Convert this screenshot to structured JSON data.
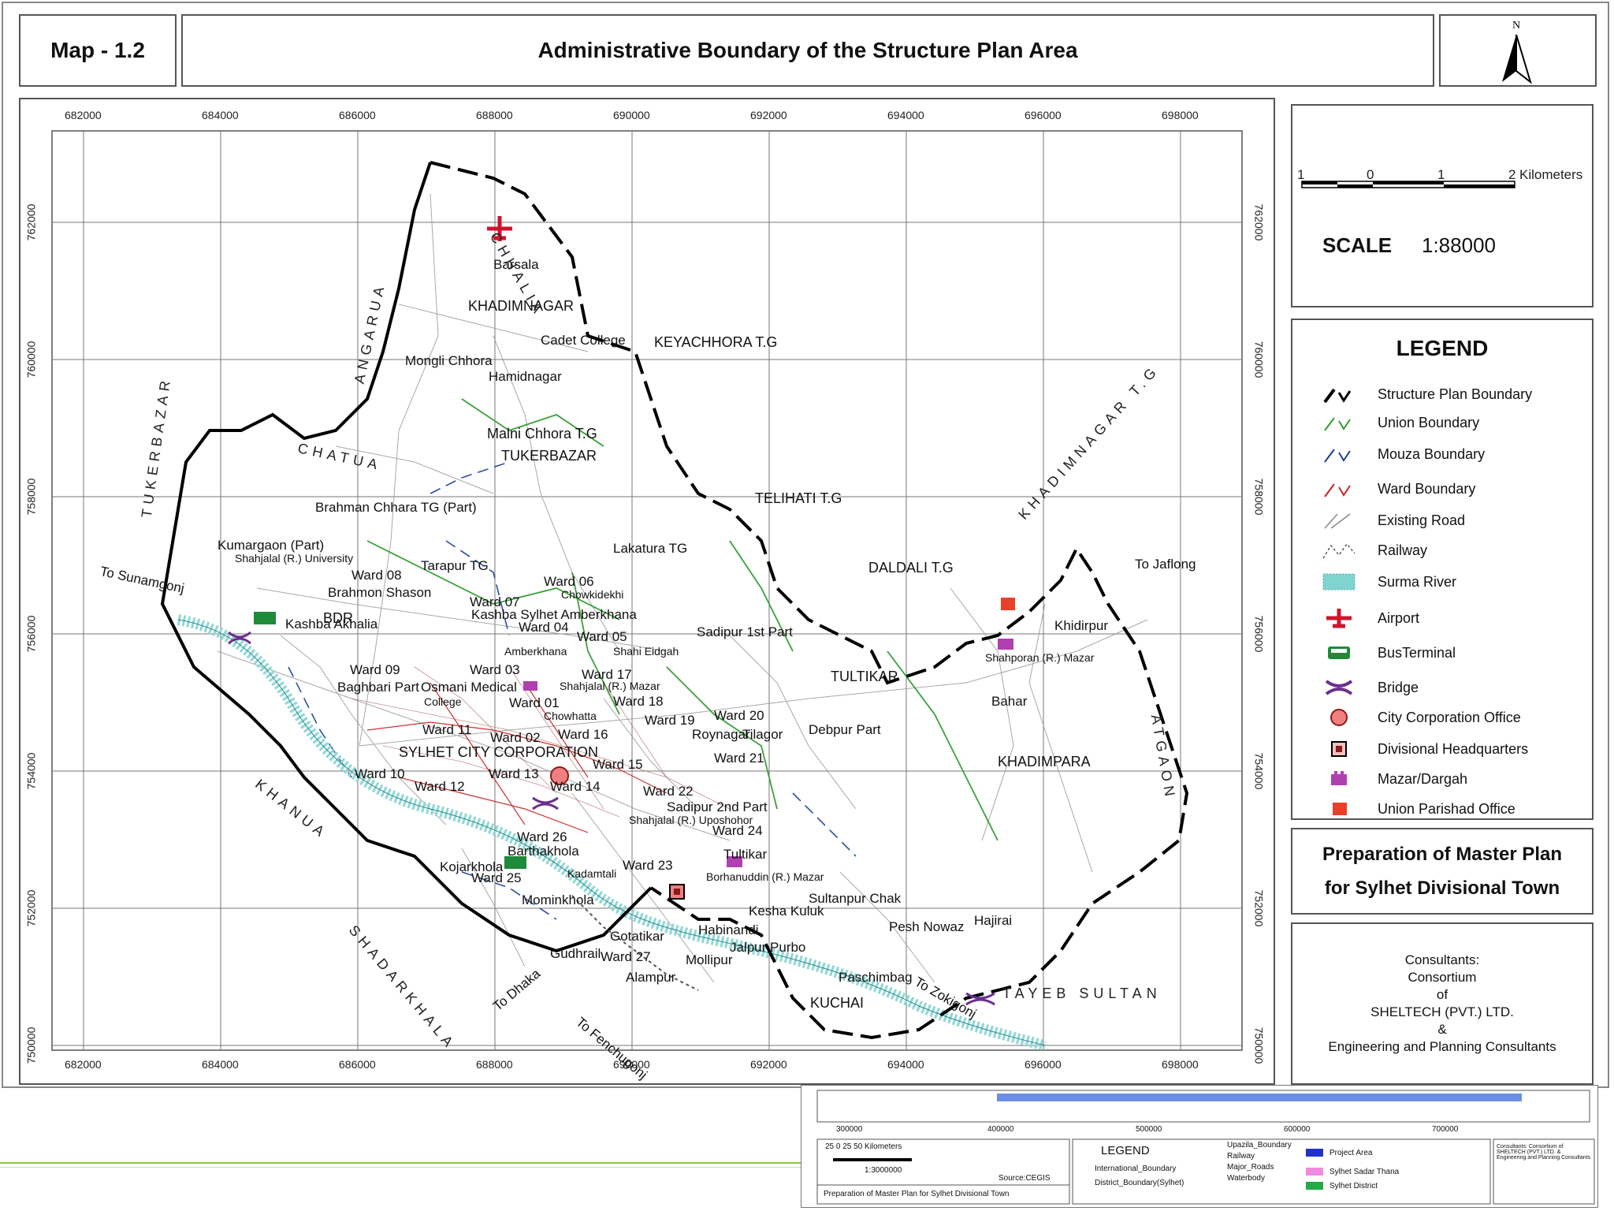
{
  "header": {
    "map_label": "Map - 1.2",
    "title": "Administrative Boundary of the Structure Plan Area",
    "north_letter": "N"
  },
  "scale": {
    "bar_labels": [
      "1",
      "0",
      "1",
      "2"
    ],
    "unit": "Kilometers",
    "word": "SCALE",
    "value": "1:88000"
  },
  "legend": {
    "title": "LEGEND",
    "items": [
      {
        "label": "Structure Plan Boundary",
        "icon": "black-dash-line-icon",
        "color": "#000000"
      },
      {
        "label": "Union Boundary",
        "icon": "green-line-icon",
        "color": "#2e9e2e"
      },
      {
        "label": "Mouza Boundary",
        "icon": "navy-line-icon",
        "color": "#1f3f8f"
      },
      {
        "label": "Ward Boundary",
        "icon": "red-line-icon",
        "color": "#cc2222"
      },
      {
        "label": "Existing Road",
        "icon": "grey-line-icon",
        "color": "#888888"
      },
      {
        "label": "Railway",
        "icon": "railway-icon",
        "color": "#555555"
      },
      {
        "label": "Surma River",
        "icon": "river-icon",
        "color": "#7fd4d0"
      },
      {
        "label": "Airport",
        "icon": "airplane-icon",
        "color": "#d0142c"
      },
      {
        "label": "BusTerminal",
        "icon": "bus-icon",
        "color": "#1f8a3a"
      },
      {
        "label": "Bridge",
        "icon": "bridge-icon",
        "color": "#6b2e8f"
      },
      {
        "label": "City Corporation Office",
        "icon": "circle-icon",
        "color": "#f08080"
      },
      {
        "label": "Divisional Headquarters",
        "icon": "square-icon",
        "color": "#8b1a1a"
      },
      {
        "label": "Mazar/Dargah",
        "icon": "mazar-icon",
        "color": "#b040b0"
      },
      {
        "label": "Union Parishad Office",
        "icon": "union-office-icon",
        "color": "#e8402a"
      }
    ]
  },
  "footer": {
    "prep_line1": "Preparation of Master Plan",
    "prep_line2": "for Sylhet Divisional Town",
    "consultants": "Consultants:",
    "consortium": "Consortium",
    "of": "of",
    "company": "SHELTECH (PVT.) LTD.",
    "amp": "&",
    "firm": "Engineering and Planning Consultants"
  },
  "axes": {
    "x_ticks": [
      "682000",
      "684000",
      "686000",
      "688000",
      "690000",
      "692000",
      "694000",
      "696000",
      "698000"
    ],
    "y_ticks": [
      "762000",
      "760000",
      "758000",
      "756000",
      "754000",
      "752000",
      "750000"
    ]
  },
  "places": [
    {
      "t": "Barsala"
    },
    {
      "t": "KHADIMNAGAR"
    },
    {
      "t": "Cadet College"
    },
    {
      "t": "KEYACHHORA  T.G"
    },
    {
      "t": "Mongli Chhora"
    },
    {
      "t": "Hamidnagar"
    },
    {
      "t": "Malni Chhora T.G"
    },
    {
      "t": "TUKERBAZAR"
    },
    {
      "t": "Brahman Chhara TG (Part)"
    },
    {
      "t": "TELIHATI  T.G"
    },
    {
      "t": "Kumargaon (Part)"
    },
    {
      "t": "Shahjalal (R.) University"
    },
    {
      "t": "Lakatura TG"
    },
    {
      "t": "Tarapur TG"
    },
    {
      "t": "DALDALI  T.G"
    },
    {
      "t": "To Jaflong"
    },
    {
      "t": "To Sunamgonj"
    },
    {
      "t": "Ward 08"
    },
    {
      "t": "Brahmon Shason"
    },
    {
      "t": "Ward 06"
    },
    {
      "t": "Chowkidekhi"
    },
    {
      "t": "Ward 07"
    },
    {
      "t": "Kashba Sylhet Amberkhana"
    },
    {
      "t": "BDR"
    },
    {
      "t": "Kashba Akhalia"
    },
    {
      "t": "Ward 04"
    },
    {
      "t": "Ward 05"
    },
    {
      "t": "Sadipur 1st Part"
    },
    {
      "t": "Khidirpur"
    },
    {
      "t": "Amberkhana"
    },
    {
      "t": "Shahi Eidgah"
    },
    {
      "t": "Shahporan (R.) Mazar"
    },
    {
      "t": "Ward 09"
    },
    {
      "t": "Ward 03"
    },
    {
      "t": "Baghbari Part"
    },
    {
      "t": "Osmani Medical"
    },
    {
      "t": "Shahjalal (R.) Mazar"
    },
    {
      "t": "Ward 17"
    },
    {
      "t": "TULTIKAR"
    },
    {
      "t": "College"
    },
    {
      "t": "Ward 01"
    },
    {
      "t": "Ward 18"
    },
    {
      "t": "Chowhatta"
    },
    {
      "t": "Bahar"
    },
    {
      "t": "Ward 19"
    },
    {
      "t": "Ward 20"
    },
    {
      "t": "Ward 11"
    },
    {
      "t": "Ward 02"
    },
    {
      "t": "Ward 16"
    },
    {
      "t": "Roynagar"
    },
    {
      "t": "Tilagor"
    },
    {
      "t": "Debpur Part"
    },
    {
      "t": "SYLHET CITY CORPORATION"
    },
    {
      "t": "Ward 15"
    },
    {
      "t": "Ward 21"
    },
    {
      "t": "KHADIMPARA"
    },
    {
      "t": "Ward 10"
    },
    {
      "t": "Ward 13"
    },
    {
      "t": "Ward 12"
    },
    {
      "t": "Ward 14"
    },
    {
      "t": "Ward 22"
    },
    {
      "t": "Sadipur 2nd Part"
    },
    {
      "t": "Shahjalal (R.) Uposhohor"
    },
    {
      "t": "Ward 24"
    },
    {
      "t": "Ward 26"
    },
    {
      "t": "Barthakhola"
    },
    {
      "t": "Kojarkhola"
    },
    {
      "t": "Ward 23"
    },
    {
      "t": "Tultikar"
    },
    {
      "t": "Kadamtali"
    },
    {
      "t": "Borhanuddin  (R.) Mazar"
    },
    {
      "t": "Ward 25"
    },
    {
      "t": "Sultanpur Chak"
    },
    {
      "t": "Mominkhola"
    },
    {
      "t": "Kesha Kuluk"
    },
    {
      "t": "Hajirai"
    },
    {
      "t": "Pesh Nowaz"
    },
    {
      "t": "Habinandi"
    },
    {
      "t": "Gotatikar"
    },
    {
      "t": "Jalpur Purbo"
    },
    {
      "t": "Gudhrail"
    },
    {
      "t": "Ward 27"
    },
    {
      "t": "Mollipur"
    },
    {
      "t": "To Dhaka"
    },
    {
      "t": "Paschimbag"
    },
    {
      "t": "Alampur"
    },
    {
      "t": "KUCHAI"
    },
    {
      "t": "To Zokigonj"
    },
    {
      "t": "To Fenchugonj"
    }
  ],
  "spaced_labels": [
    {
      "t": "CHHALIA"
    },
    {
      "t": "ANGARUA"
    },
    {
      "t": "TUKERBAZAR"
    },
    {
      "t": "CHATUA"
    },
    {
      "t": "KHADIMNAGAR T.G"
    },
    {
      "t": "KHANUA"
    },
    {
      "t": "SHADARKHALA"
    },
    {
      "t": "ATGAON"
    },
    {
      "t": "TAYEB   SULTAN"
    }
  ],
  "inset": {
    "x_ticks": [
      "300000",
      "400000",
      "500000",
      "600000",
      "700000"
    ],
    "scale_labels": "25    0    25    50  Kilometers",
    "scale_ratio": "1:3000000",
    "source": "Source:CEGIS",
    "prep": "Preparation of Master Plan for Sylhet Divisional Town",
    "legend_title": "LEGEND",
    "items": [
      "International_Boundary",
      "District_Boundary(Sylhet)",
      "Upazila_Boundary",
      "Railway",
      "Major_Roads",
      "Waterbody",
      "Project Area",
      "Sylhet Sadar Thana",
      "Sylhet District"
    ],
    "consultant_small": "Consultants: Consortium of SHELTECH (PVT.) LTD. & Engineering and Planning Consultants"
  },
  "colors": {
    "river": "#8fd8d4",
    "union": "#3aa03a",
    "mouza": "#2b4fa0",
    "ward": "#cc3333",
    "road": "#9a9a9a",
    "boundary": "#000000",
    "inset_blue": "#6b8ee8"
  }
}
